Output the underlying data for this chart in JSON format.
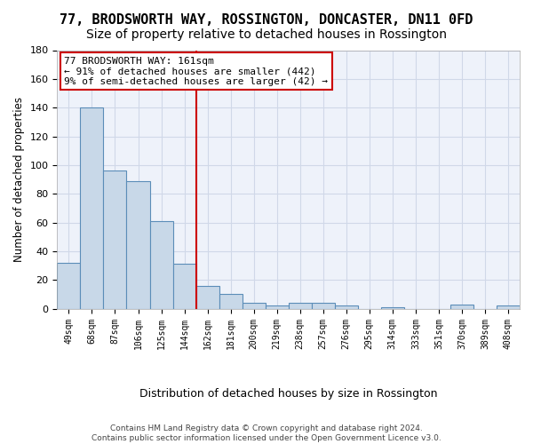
{
  "title": "77, BRODSWORTH WAY, ROSSINGTON, DONCASTER, DN11 0FD",
  "subtitle": "Size of property relative to detached houses in Rossington",
  "xlabel": "Distribution of detached houses by size in Rossington",
  "ylabel": "Number of detached properties",
  "bar_values": [
    32,
    140,
    96,
    89,
    61,
    31,
    16,
    10,
    4,
    2,
    4,
    4,
    2,
    0,
    1,
    0,
    0,
    3,
    0,
    2
  ],
  "bar_labels": [
    "49sqm",
    "68sqm",
    "87sqm",
    "106sqm",
    "125sqm",
    "144sqm",
    "162sqm",
    "181sqm",
    "200sqm",
    "219sqm",
    "238sqm",
    "257sqm",
    "276sqm",
    "295sqm",
    "314sqm",
    "333sqm",
    "351sqm",
    "370sqm",
    "389sqm",
    "408sqm"
  ],
  "bar_color": "#c8d8e8",
  "bar_edge_color": "#5b8db8",
  "vline_x_index": 6,
  "vline_color": "#cc0000",
  "annotation_text": "77 BRODSWORTH WAY: 161sqm\n← 91% of detached houses are smaller (442)\n9% of semi-detached houses are larger (42) →",
  "annotation_box_color": "#cc0000",
  "ylim": [
    0,
    180
  ],
  "yticks": [
    0,
    20,
    40,
    60,
    80,
    100,
    120,
    140,
    160,
    180
  ],
  "grid_color": "#d0d8e8",
  "background_color": "#eef2fa",
  "footer": "Contains HM Land Registry data © Crown copyright and database right 2024.\nContains public sector information licensed under the Open Government Licence v3.0.",
  "title_fontsize": 11,
  "subtitle_fontsize": 10,
  "annotation_fontsize": 8.0,
  "ylabel_fontsize": 8.5,
  "xlabel_fontsize": 9,
  "footer_fontsize": 6.5
}
